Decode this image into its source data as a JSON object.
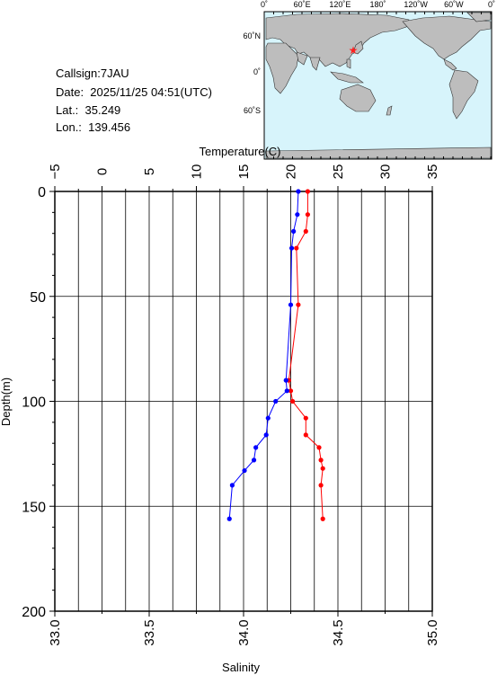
{
  "info": {
    "callsign": "Callsign:7JAU",
    "date": "Date:  2025/11/25 04:51(UTC)",
    "lat": "Lat.:  35.249",
    "lon": "Lon.:  139.456"
  },
  "map": {
    "top_labels": [
      "0˚",
      "60˚E",
      "120˚E",
      "180˚",
      "120˚W",
      "60˚W",
      "0˚"
    ],
    "side_labels": [
      "60˚N",
      "0˚",
      "60˚S"
    ],
    "ocean_color": "#d7f4fb",
    "land_color": "#bdbdbd",
    "marker": "star-icon",
    "marker_color": "#ff2020"
  },
  "chart_data": {
    "type": "line",
    "top_axis_label": "Temperature(C)",
    "bottom_axis_label": "Salinity",
    "left_axis_label": "Depth(m)",
    "temperature_ticks": [
      "−5",
      "0",
      "5",
      "10",
      "15",
      "20",
      "25",
      "30",
      "35"
    ],
    "salinity_ticks": [
      "33.0",
      "33.5",
      "34.0",
      "34.5",
      "35.0"
    ],
    "depth_ticks": [
      "0",
      "50",
      "100",
      "150",
      "200"
    ],
    "temperature_range": [
      -5,
      35
    ],
    "salinity_range": [
      33.0,
      35.0
    ],
    "depth_range": [
      0,
      200
    ],
    "grid": true,
    "series": [
      {
        "color": "#ff0000",
        "axis": "salinity",
        "points": [
          {
            "depth": 0,
            "salinity": 34.34
          },
          {
            "depth": 11,
            "salinity": 34.34
          },
          {
            "depth": 19,
            "salinity": 34.33
          },
          {
            "depth": 27,
            "salinity": 34.28
          },
          {
            "depth": 54,
            "salinity": 34.29
          },
          {
            "depth": 90,
            "salinity": 34.24
          },
          {
            "depth": 95,
            "salinity": 34.25
          },
          {
            "depth": 100,
            "salinity": 34.26
          },
          {
            "depth": 108,
            "salinity": 34.33
          },
          {
            "depth": 116,
            "salinity": 34.33
          },
          {
            "depth": 122,
            "salinity": 34.4
          },
          {
            "depth": 128,
            "salinity": 34.41
          },
          {
            "depth": 132,
            "salinity": 34.42
          },
          {
            "depth": 140,
            "salinity": 34.41
          },
          {
            "depth": 156,
            "salinity": 34.42
          }
        ]
      },
      {
        "color": "#0000ff",
        "axis": "temperature",
        "points": [
          {
            "depth": 0,
            "temperature": 20.8
          },
          {
            "depth": 11,
            "temperature": 20.7
          },
          {
            "depth": 19,
            "temperature": 20.3
          },
          {
            "depth": 27,
            "temperature": 20.1
          },
          {
            "depth": 54,
            "temperature": 20.0
          },
          {
            "depth": 90,
            "temperature": 19.5
          },
          {
            "depth": 95,
            "temperature": 19.6
          },
          {
            "depth": 100,
            "temperature": 18.4
          },
          {
            "depth": 108,
            "temperature": 17.6
          },
          {
            "depth": 116,
            "temperature": 17.4
          },
          {
            "depth": 122,
            "temperature": 16.3
          },
          {
            "depth": 128,
            "temperature": 16.1
          },
          {
            "depth": 133,
            "temperature": 15.1
          },
          {
            "depth": 140,
            "temperature": 13.8
          },
          {
            "depth": 156,
            "temperature": 13.5
          }
        ]
      }
    ]
  }
}
